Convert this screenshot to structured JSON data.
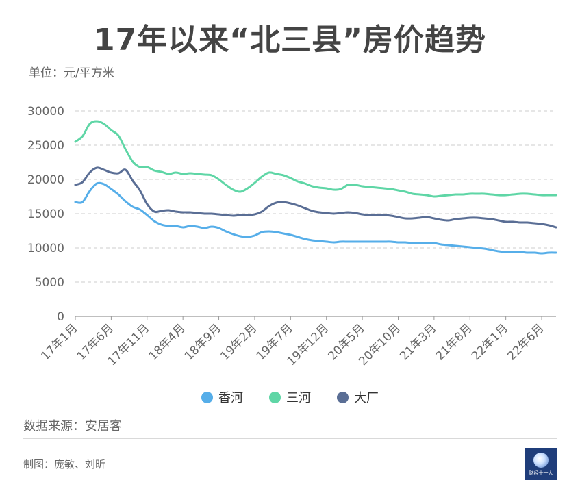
{
  "title": "17年以来“北三县”房价趋势",
  "unit": "单位：元/平方米",
  "source": "数据来源：安居客",
  "credit": "制图：庞敏、刘昕",
  "logo_text": "财经十一人",
  "colors": {
    "香河": "#56aee9",
    "三河": "#5fd6a6",
    "大厂": "#5a6e95",
    "grid": "#cccccc",
    "axis": "#999999",
    "label": "#666666"
  },
  "chart_data": {
    "type": "line",
    "title": "17年以来“北三县”房价趋势",
    "ylabel": "单位：元/平方米",
    "ylim": [
      0,
      30000
    ],
    "yticks": [
      0,
      5000,
      10000,
      15000,
      20000,
      25000,
      30000
    ],
    "grid": true,
    "legend": "bottom",
    "x": [
      "17年1月",
      "17年2月",
      "17年3月",
      "17年4月",
      "17年5月",
      "17年6月",
      "17年7月",
      "17年8月",
      "17年9月",
      "17年10月",
      "17年11月",
      "17年12月",
      "18年1月",
      "18年2月",
      "18年3月",
      "18年4月",
      "18年5月",
      "18年6月",
      "18年7月",
      "18年8月",
      "18年9月",
      "18年10月",
      "18年11月",
      "18年12月",
      "19年1月",
      "19年2月",
      "19年3月",
      "19年4月",
      "19年5月",
      "19年6月",
      "19年7月",
      "19年8月",
      "19年9月",
      "19年10月",
      "19年11月",
      "19年12月",
      "20年1月",
      "20年2月",
      "20年3月",
      "20年4月",
      "20年5月",
      "20年6月",
      "20年7月",
      "20年8月",
      "20年9月",
      "20年10月",
      "20年11月",
      "20年12月",
      "21年1月",
      "21年2月",
      "21年3月",
      "21年4月",
      "21年5月",
      "21年6月",
      "21年7月",
      "21年8月",
      "21年9月",
      "21年10月",
      "21年11月",
      "21年12月",
      "22年1月",
      "22年2月",
      "22年3月",
      "22年4月",
      "22年5月",
      "22年6月",
      "22年7月",
      "22年8月"
    ],
    "xtick_labels": [
      "17年1月",
      "17年6月",
      "17年11月",
      "18年4月",
      "18年9月",
      "19年2月",
      "19年7月",
      "19年12月",
      "20年5月",
      "20年10月",
      "21年3月",
      "21年8月",
      "22年1月",
      "22年6月"
    ],
    "series": [
      {
        "name": "香河",
        "color": "#56aee9",
        "values": [
          16700,
          16700,
          18300,
          19400,
          19300,
          18600,
          17800,
          16800,
          16000,
          15600,
          14800,
          13900,
          13400,
          13200,
          13200,
          13000,
          13200,
          13100,
          12900,
          13100,
          12900,
          12400,
          12000,
          11700,
          11600,
          11800,
          12300,
          12400,
          12300,
          12100,
          11900,
          11600,
          11300,
          11100,
          11000,
          10900,
          10800,
          10900,
          10900,
          10900,
          10900,
          10900,
          10900,
          10900,
          10900,
          10800,
          10800,
          10700,
          10700,
          10700,
          10700,
          10500,
          10400,
          10300,
          10200,
          10100,
          10000,
          9900,
          9700,
          9500,
          9400,
          9400,
          9400,
          9300,
          9300,
          9200,
          9300,
          9300
        ]
      },
      {
        "name": "三河",
        "color": "#5fd6a6",
        "values": [
          25500,
          26300,
          28100,
          28500,
          28100,
          27200,
          26400,
          24400,
          22600,
          21800,
          21800,
          21300,
          21100,
          20800,
          21000,
          20800,
          20900,
          20800,
          20700,
          20600,
          20000,
          19200,
          18500,
          18200,
          18700,
          19500,
          20400,
          21000,
          20800,
          20600,
          20200,
          19700,
          19400,
          19000,
          18800,
          18700,
          18500,
          18600,
          19200,
          19200,
          19000,
          18900,
          18800,
          18700,
          18600,
          18400,
          18200,
          17900,
          17800,
          17700,
          17500,
          17600,
          17700,
          17800,
          17800,
          17900,
          17900,
          17900,
          17800,
          17700,
          17700,
          17800,
          17900,
          17900,
          17800,
          17700,
          17700,
          17700
        ]
      },
      {
        "name": "大厂",
        "color": "#5a6e95",
        "values": [
          19200,
          19600,
          21000,
          21700,
          21400,
          21000,
          20900,
          21400,
          19800,
          18400,
          16400,
          15300,
          15400,
          15500,
          15300,
          15200,
          15200,
          15100,
          15000,
          15000,
          14900,
          14800,
          14700,
          14800,
          14800,
          14900,
          15300,
          16100,
          16600,
          16700,
          16500,
          16200,
          15800,
          15400,
          15200,
          15100,
          15000,
          15100,
          15200,
          15100,
          14900,
          14800,
          14800,
          14800,
          14700,
          14500,
          14300,
          14300,
          14400,
          14500,
          14300,
          14100,
          14000,
          14200,
          14300,
          14400,
          14400,
          14300,
          14200,
          14000,
          13800,
          13800,
          13700,
          13700,
          13600,
          13500,
          13300,
          13000
        ]
      }
    ]
  }
}
